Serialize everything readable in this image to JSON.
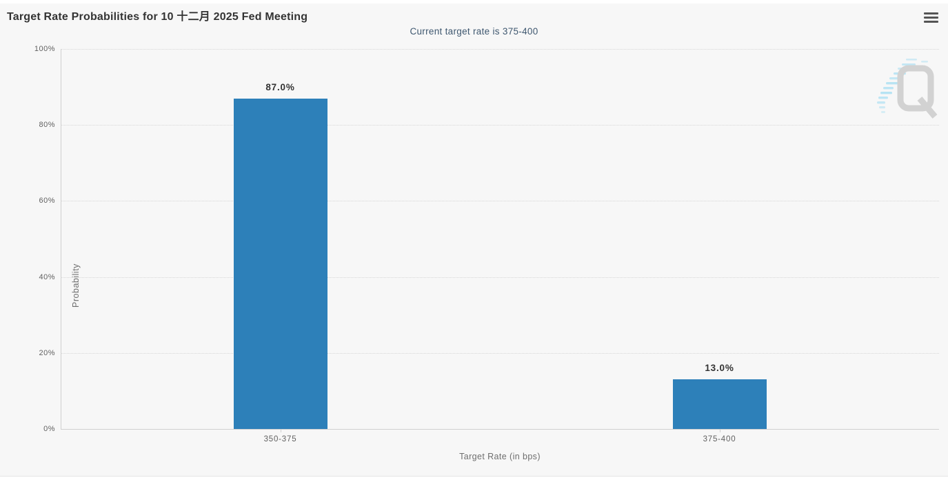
{
  "header": {
    "title": "Target Rate Probabilities for 10 十二月 2025 Fed Meeting",
    "subtitle": "Current target rate is 375-400",
    "menu_icon": "hamburger-menu-icon"
  },
  "watermark": {
    "letter": "Q"
  },
  "colors": {
    "bar": "#2d80b9",
    "subtitle_text": "#3e576f",
    "title_text": "#333333",
    "axis_text": "#606060",
    "background": "#f7f7f7"
  },
  "chart_data": {
    "type": "bar",
    "title": "Target Rate Probabilities for 10 十二月 2025 Fed Meeting",
    "subtitle": "Current target rate is 375-400",
    "categories": [
      "350-375",
      "375-400"
    ],
    "values": [
      87.0,
      13.0
    ],
    "value_labels": [
      "87.0%",
      "13.0%"
    ],
    "xlabel": "Target Rate (in bps)",
    "ylabel": "Probability",
    "ylim": [
      0,
      100
    ],
    "ytick_step": 20,
    "ytick_labels": [
      "0%",
      "20%",
      "40%",
      "60%",
      "80%",
      "100%"
    ],
    "grid": "dotted-horizontal",
    "legend": "none"
  }
}
